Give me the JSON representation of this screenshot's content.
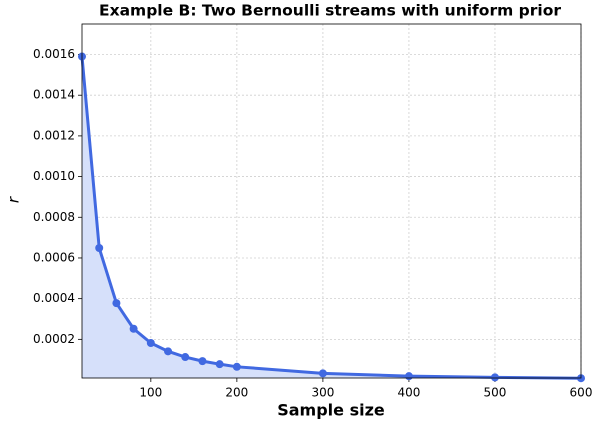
{
  "chart_data": {
    "type": "line",
    "title": "Example B: Two Bernoulli streams with uniform prior",
    "x_label": "Sample size",
    "y_label": "r",
    "x": [
      20,
      40,
      60,
      80,
      100,
      120,
      140,
      160,
      180,
      200,
      300,
      400,
      500,
      600
    ],
    "series": [
      {
        "color": "#4169e1",
        "values": [
          0.00159,
          0.000649,
          0.000378,
          0.000252,
          0.000182,
          0.000141,
          0.000113,
          9.3e-05,
          7.8e-05,
          6.5e-05,
          3.3e-05,
          1.9e-05,
          1.3e-05,
          9e-06
        ]
      }
    ],
    "fill": true,
    "fill_color": "#d6e0fa",
    "xlim": [
      20,
      600
    ],
    "xticks": [
      100,
      200,
      300,
      400,
      500,
      600
    ],
    "ylim": [
      1e-05,
      0.00175
    ],
    "yticks": [
      0.0002,
      0.0004,
      0.0006,
      0.0008,
      {
        "value": 0.001,
        "label": "0.0010"
      },
      0.0012,
      0.0014,
      0.0016
    ],
    "grid": true
  }
}
